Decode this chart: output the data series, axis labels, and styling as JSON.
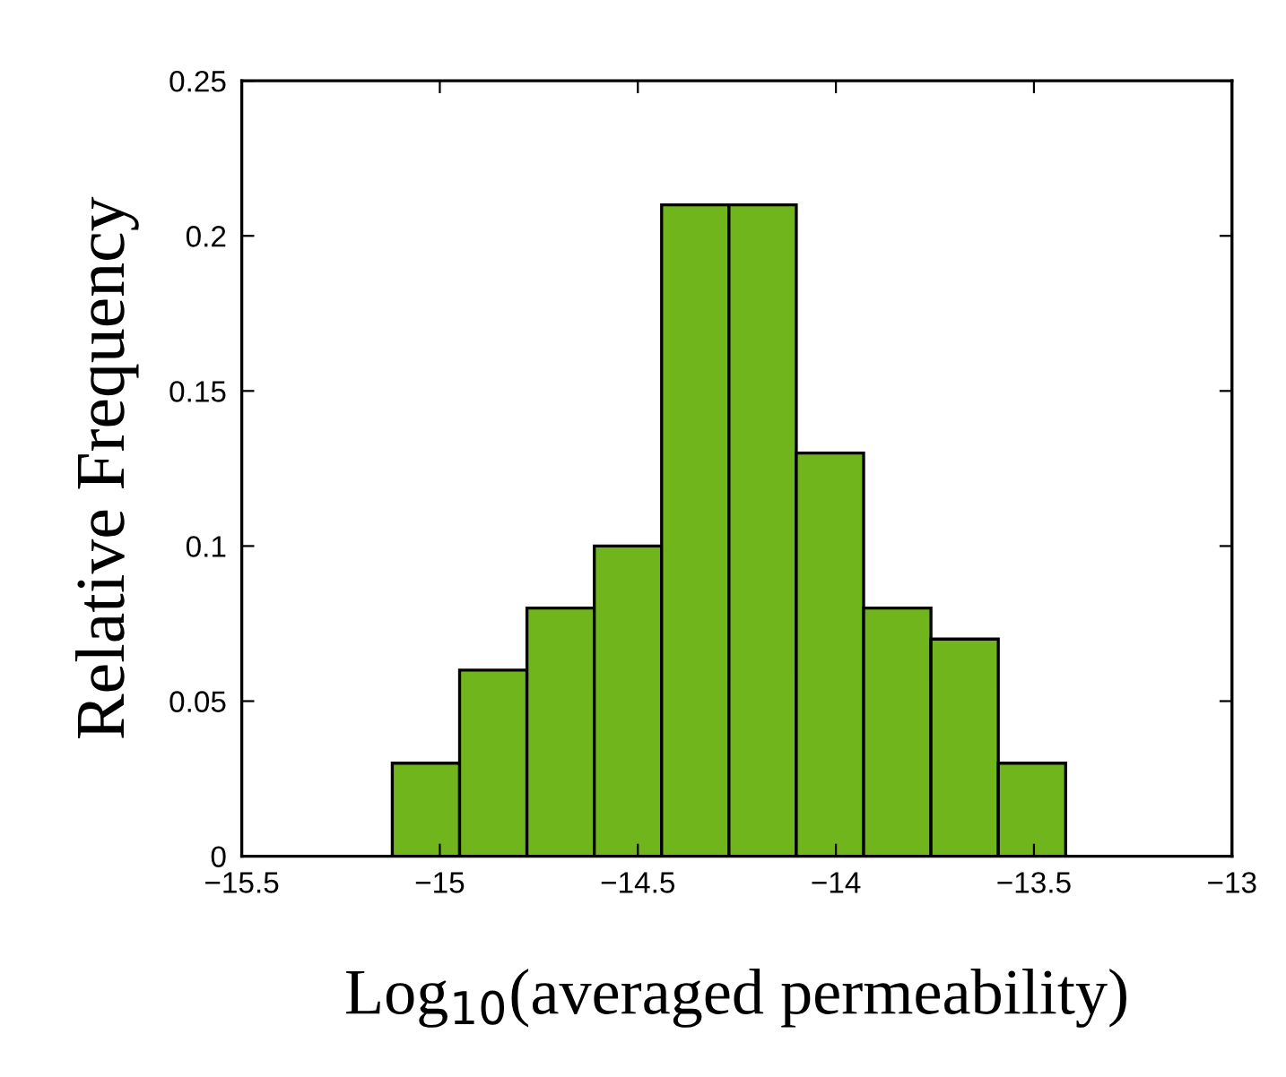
{
  "chart_data": {
    "type": "histogram",
    "xlabel": "Log$_{10}$(averaged permeability)",
    "ylabel": "Relative Frequency",
    "bins": [
      -15.12,
      -14.95,
      -14.78,
      -14.61,
      -14.44,
      -14.27,
      -14.1,
      -13.93,
      -13.76,
      -13.59,
      -13.42
    ],
    "values": [
      0.03,
      0.06,
      0.08,
      0.1,
      0.21,
      0.21,
      0.13,
      0.08,
      0.07,
      0.03
    ],
    "color": "#70b51c",
    "xlim": [
      -15.5,
      -13
    ],
    "xticks": [
      {
        "value": -15.5,
        "label": "−15.5"
      },
      {
        "value": -15,
        "label": "−15"
      },
      {
        "value": -14.5,
        "label": "−14.5"
      },
      {
        "value": -14,
        "label": "−14"
      },
      {
        "value": -13.5,
        "label": "−13.5"
      },
      {
        "value": -13,
        "label": "−13"
      }
    ],
    "ylim": [
      0,
      0.25
    ],
    "yticks": [
      0,
      0.05,
      0.1,
      0.15,
      0.2,
      0.25
    ],
    "grid": false
  }
}
